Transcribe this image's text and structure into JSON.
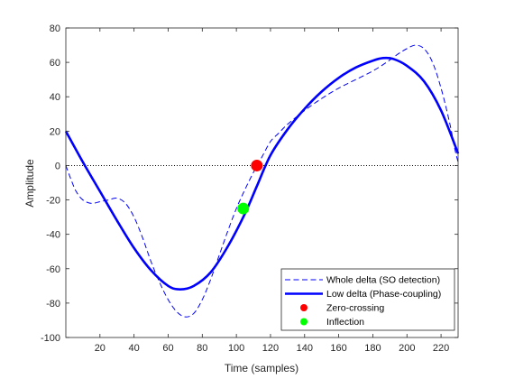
{
  "chart_data": {
    "type": "line",
    "xlabel": "Time (samples)",
    "ylabel": "Amplitude",
    "xlim": [
      0,
      230
    ],
    "ylim": [
      -100,
      80
    ],
    "x_ticks": [
      20,
      40,
      60,
      80,
      100,
      120,
      140,
      160,
      180,
      200,
      220
    ],
    "y_ticks": [
      -100,
      -80,
      -60,
      -40,
      -20,
      0,
      20,
      40,
      60,
      80
    ],
    "zero_line": {
      "y": 0,
      "style": "dotted",
      "color": "#000000"
    },
    "legend_position": "bottom-right",
    "series": [
      {
        "name": "Whole delta (SO detection)",
        "style": "dashed",
        "color": "#0000ff",
        "points": [
          [
            0,
            0
          ],
          [
            3,
            -8
          ],
          [
            6,
            -15
          ],
          [
            10,
            -20
          ],
          [
            15,
            -22
          ],
          [
            20,
            -21
          ],
          [
            25,
            -20
          ],
          [
            30,
            -19
          ],
          [
            35,
            -22
          ],
          [
            40,
            -30
          ],
          [
            45,
            -42
          ],
          [
            50,
            -56
          ],
          [
            55,
            -68
          ],
          [
            60,
            -78
          ],
          [
            65,
            -85
          ],
          [
            70,
            -88
          ],
          [
            75,
            -86
          ],
          [
            80,
            -78
          ],
          [
            85,
            -66
          ],
          [
            90,
            -52
          ],
          [
            95,
            -38
          ],
          [
            100,
            -25
          ],
          [
            105,
            -14
          ],
          [
            110,
            -4
          ],
          [
            115,
            5
          ],
          [
            120,
            14
          ],
          [
            125,
            19
          ],
          [
            130,
            24
          ],
          [
            140,
            32
          ],
          [
            150,
            39
          ],
          [
            160,
            45
          ],
          [
            170,
            50
          ],
          [
            180,
            55
          ],
          [
            188,
            60
          ],
          [
            195,
            65
          ],
          [
            200,
            68
          ],
          [
            205,
            70
          ],
          [
            210,
            68
          ],
          [
            215,
            60
          ],
          [
            220,
            45
          ],
          [
            225,
            25
          ],
          [
            228,
            10
          ],
          [
            230,
            2
          ]
        ]
      },
      {
        "name": "Low delta (Phase-coupling)",
        "style": "solid",
        "color": "#0000ff",
        "points": [
          [
            0,
            20
          ],
          [
            10,
            2
          ],
          [
            20,
            -15
          ],
          [
            30,
            -32
          ],
          [
            40,
            -48
          ],
          [
            50,
            -61
          ],
          [
            60,
            -70
          ],
          [
            67,
            -72
          ],
          [
            75,
            -70
          ],
          [
            85,
            -62
          ],
          [
            95,
            -47
          ],
          [
            105,
            -28
          ],
          [
            112,
            -12
          ],
          [
            120,
            6
          ],
          [
            130,
            21
          ],
          [
            140,
            33
          ],
          [
            150,
            43
          ],
          [
            160,
            51
          ],
          [
            170,
            57
          ],
          [
            180,
            61
          ],
          [
            186,
            62.5
          ],
          [
            192,
            62
          ],
          [
            200,
            58
          ],
          [
            210,
            49
          ],
          [
            220,
            32
          ],
          [
            230,
            7
          ]
        ]
      },
      {
        "name": "Zero-crossing",
        "style": "marker",
        "color": "#ff0000",
        "points": [
          [
            112,
            0
          ]
        ]
      },
      {
        "name": "Inflection",
        "style": "marker",
        "color": "#00ff00",
        "points": [
          [
            104,
            -25
          ]
        ]
      }
    ]
  }
}
